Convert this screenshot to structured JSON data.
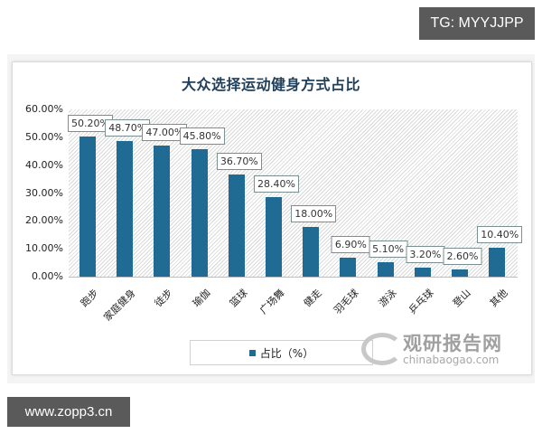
{
  "watermarks": {
    "top_right": "TG: MYYJJPP",
    "bottom_left": "www.zopp3.cn",
    "logo_cn": "观研报告网",
    "logo_en": "chinabaogao.com"
  },
  "chart_data": {
    "type": "bar",
    "title": "大众选择运动健身方式占比",
    "categories": [
      "跑步",
      "家庭健身",
      "徒步",
      "瑜伽",
      "篮球",
      "广场舞",
      "健走",
      "羽毛球",
      "游泳",
      "乒乓球",
      "登山",
      "其他"
    ],
    "series": [
      {
        "name": "占比（%）",
        "values": [
          50.2,
          48.7,
          47.0,
          45.8,
          36.7,
          28.4,
          18.0,
          6.9,
          5.1,
          3.2,
          2.6,
          10.4
        ],
        "labels": [
          "50.20%",
          "48.70%",
          "47.00%",
          "45.80%",
          "36.70%",
          "28.40%",
          "18.00%",
          "6.90%",
          "5.10%",
          "3.20%",
          "2.60%",
          "10.40%"
        ],
        "color": "#1f6b93"
      }
    ],
    "xlabel": "",
    "ylabel": "",
    "ylim": [
      0,
      60
    ],
    "yticks": [
      "0.00%",
      "10.00%",
      "20.00%",
      "30.00%",
      "40.00%",
      "50.00%",
      "60.00%"
    ],
    "grid": false,
    "legend_position": "bottom",
    "legend": [
      "占比（%）"
    ]
  }
}
